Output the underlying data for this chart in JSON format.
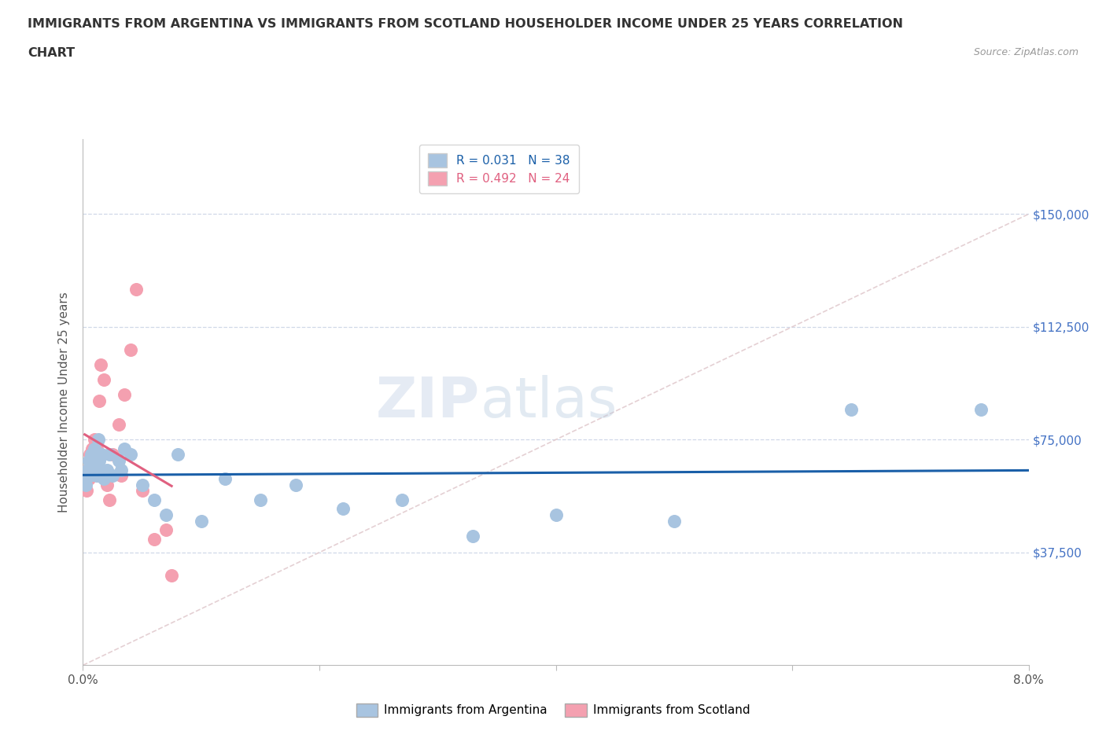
{
  "title_line1": "IMMIGRANTS FROM ARGENTINA VS IMMIGRANTS FROM SCOTLAND HOUSEHOLDER INCOME UNDER 25 YEARS CORRELATION",
  "title_line2": "CHART",
  "source_text": "Source: ZipAtlas.com",
  "ylabel": "Householder Income Under 25 years",
  "xlim": [
    0.0,
    0.08
  ],
  "ylim": [
    0,
    175000
  ],
  "ytick_labels": [
    "$37,500",
    "$75,000",
    "$112,500",
    "$150,000"
  ],
  "ytick_values": [
    37500,
    75000,
    112500,
    150000
  ],
  "r_argentina": 0.031,
  "n_argentina": 38,
  "r_scotland": 0.492,
  "n_scotland": 24,
  "argentina_color": "#a8c4e0",
  "scotland_color": "#f4a0b0",
  "argentina_line_color": "#1a5fa8",
  "scotland_line_color": "#e06080",
  "diagonal_line_color": "#e0c8cc",
  "grid_color": "#d0d8e8",
  "legend_label_argentina": "Immigrants from Argentina",
  "legend_label_scotland": "Immigrants from Scotland",
  "watermark_zip": "ZIP",
  "watermark_atlas": "atlas",
  "argentina_x": [
    0.00015,
    0.00025,
    0.0004,
    0.0005,
    0.0006,
    0.0007,
    0.0008,
    0.0009,
    0.001,
    0.0011,
    0.0012,
    0.0013,
    0.0014,
    0.0015,
    0.0016,
    0.0018,
    0.002,
    0.0022,
    0.0025,
    0.003,
    0.0032,
    0.0035,
    0.004,
    0.005,
    0.006,
    0.007,
    0.008,
    0.01,
    0.012,
    0.015,
    0.018,
    0.022,
    0.027,
    0.033,
    0.04,
    0.05,
    0.065,
    0.076
  ],
  "argentina_y": [
    63000,
    60000,
    65000,
    68000,
    63000,
    70000,
    65000,
    67000,
    72000,
    64000,
    63000,
    75000,
    68000,
    65000,
    70000,
    62000,
    65000,
    70000,
    63000,
    68000,
    65000,
    72000,
    70000,
    60000,
    55000,
    50000,
    70000,
    48000,
    62000,
    55000,
    60000,
    52000,
    55000,
    43000,
    50000,
    48000,
    85000,
    85000
  ],
  "scotland_x": [
    0.00015,
    0.0003,
    0.0004,
    0.0005,
    0.0006,
    0.0007,
    0.0008,
    0.001,
    0.0012,
    0.0014,
    0.0015,
    0.0018,
    0.002,
    0.0022,
    0.0025,
    0.003,
    0.0032,
    0.0035,
    0.004,
    0.0045,
    0.005,
    0.006,
    0.007,
    0.0075
  ],
  "scotland_y": [
    60000,
    58000,
    65000,
    62000,
    70000,
    68000,
    72000,
    75000,
    72000,
    88000,
    100000,
    95000,
    60000,
    55000,
    70000,
    80000,
    63000,
    90000,
    105000,
    125000,
    58000,
    42000,
    45000,
    30000
  ]
}
